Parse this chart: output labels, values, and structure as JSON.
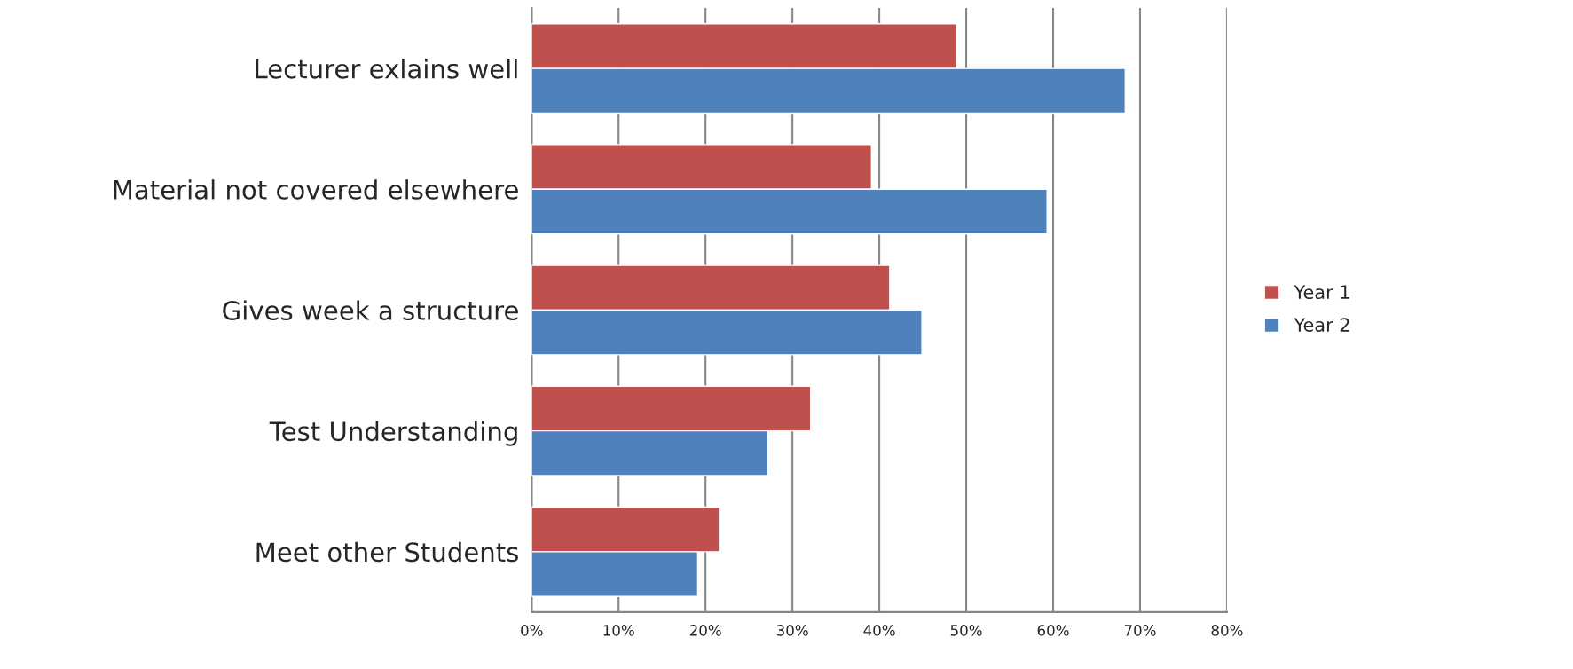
{
  "chart_data": {
    "type": "bar",
    "orientation": "horizontal",
    "categories": [
      "Lecturer exlains well",
      "Material not covered elsewhere",
      "Gives week a structure",
      "Test Understanding",
      "Meet other Students"
    ],
    "series": [
      {
        "name": "Year 1",
        "color": "#c0504d",
        "values": [
          48.9,
          39.1,
          41.2,
          32.1,
          21.6
        ]
      },
      {
        "name": "Year 2",
        "color": "#4f81bd",
        "values": [
          68.3,
          59.3,
          44.9,
          27.2,
          19.1
        ]
      }
    ],
    "xlim": [
      0,
      80
    ],
    "xticks": [
      {
        "value": 0,
        "label": "0%"
      },
      {
        "value": 10,
        "label": "10%"
      },
      {
        "value": 20,
        "label": "20%"
      },
      {
        "value": 30,
        "label": "30%"
      },
      {
        "value": 40,
        "label": "40%"
      },
      {
        "value": 50,
        "label": "50%"
      },
      {
        "value": 60,
        "label": "60%"
      },
      {
        "value": 70,
        "label": "70%"
      },
      {
        "value": 80,
        "label": "80%"
      }
    ],
    "grid": "x",
    "legend": "right"
  }
}
